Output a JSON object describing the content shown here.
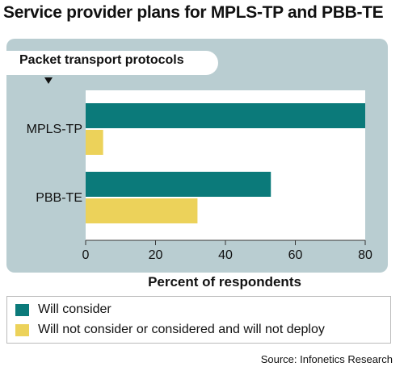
{
  "chart_data": {
    "type": "bar",
    "orientation": "horizontal",
    "title": "Service provider plans for MPLS-TP and PBB-TE",
    "subtitle": "Packet transport protocols",
    "categories": [
      "MPLS-TP",
      "PBB-TE"
    ],
    "series": [
      {
        "name": "Will consider",
        "values": [
          80,
          53
        ],
        "color": "#0b7a7a"
      },
      {
        "name": "Will not consider or considered and will not deploy",
        "values": [
          5,
          32
        ],
        "color": "#ecd25a"
      }
    ],
    "xlabel": "Percent of respondents",
    "ylabel": "",
    "xlim": [
      0,
      80
    ],
    "xticks": [
      0,
      20,
      40,
      60,
      80
    ],
    "grid": false,
    "legend": "bottom",
    "source": "Source: Infonetics Research"
  }
}
